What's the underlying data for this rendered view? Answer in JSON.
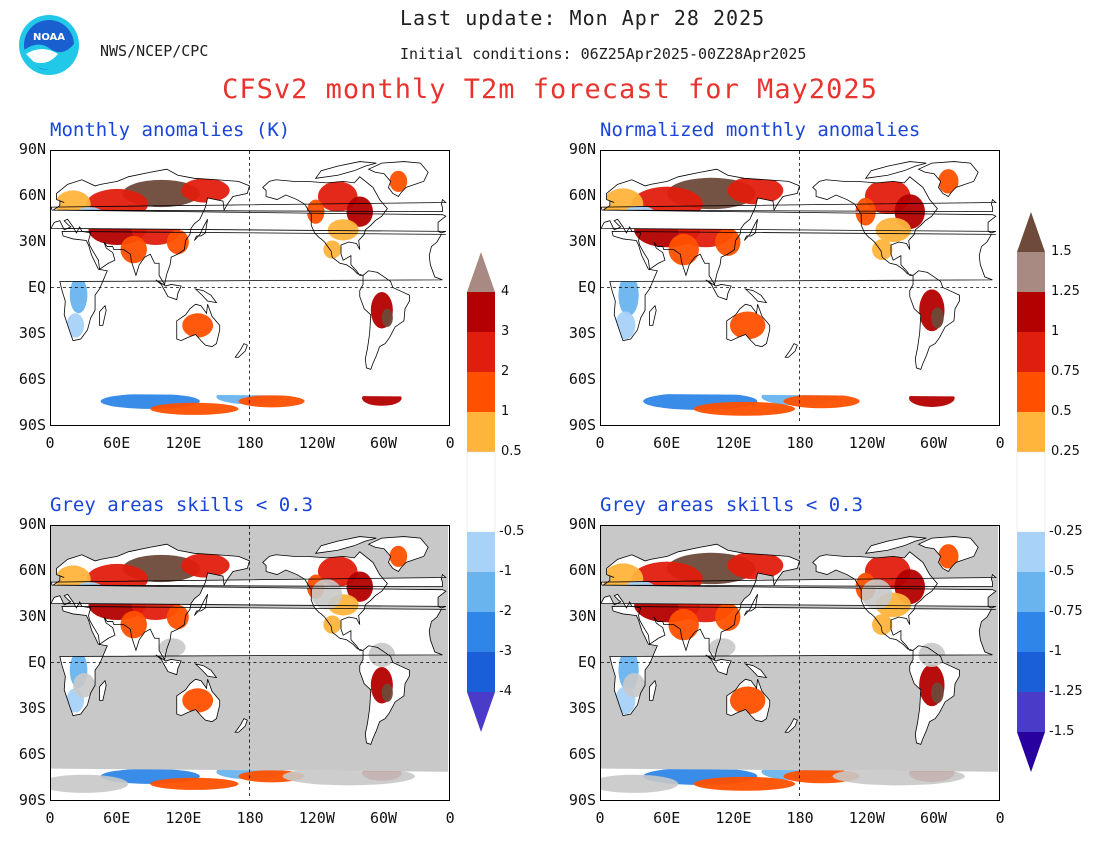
{
  "header": {
    "last_update": "Last update: Mon Apr 28 2025",
    "agency": "NWS/NCEP/CPC",
    "initial_conditions": "Initial conditions: 06Z25Apr2025-00Z28Apr2025",
    "title": "CFSv2 monthly T2m forecast for May2025"
  },
  "logo": {
    "text": "NOAA"
  },
  "axes": {
    "lat_labels": [
      "90N",
      "60N",
      "30N",
      "EQ",
      "30S",
      "60S",
      "90S"
    ],
    "lon_labels": [
      "0",
      "60E",
      "120E",
      "180",
      "120W",
      "60W",
      "0"
    ]
  },
  "panels": [
    {
      "title": "Monthly anomalies (K)",
      "grey_mask": false
    },
    {
      "title": "Normalized monthly anomalies",
      "grey_mask": false
    },
    {
      "title": "Grey areas skills < 0.3",
      "grey_mask": true
    },
    {
      "title": "Grey areas skills < 0.3",
      "grey_mask": true
    }
  ],
  "colorbars": [
    {
      "labels_pos": [
        "4",
        "3",
        "2",
        "1",
        "0.5"
      ],
      "labels_neg": [
        "-0.5",
        "-1",
        "-2",
        "-3",
        "-4"
      ]
    },
    {
      "labels_pos": [
        "1.5",
        "1.25",
        "1",
        "0.75",
        "0.5",
        "0.25"
      ],
      "labels_neg": [
        "-0.25",
        "-0.5",
        "-0.75",
        "-1",
        "-1.25",
        "-1.5"
      ]
    }
  ],
  "colors": {
    "warm": [
      "#6e4a3a",
      "#a88a82",
      "#b30000",
      "#e01e0e",
      "#ff5000",
      "#ffb43c"
    ],
    "cool": [
      "#a8d2f8",
      "#69b4ef",
      "#2f86e8",
      "#1a5ed8",
      "#4a3cc8",
      "#2800a0"
    ],
    "grey_mask": "#c8c8c8",
    "title_blue": "#1a46d8",
    "title_red": "#e8342f"
  }
}
